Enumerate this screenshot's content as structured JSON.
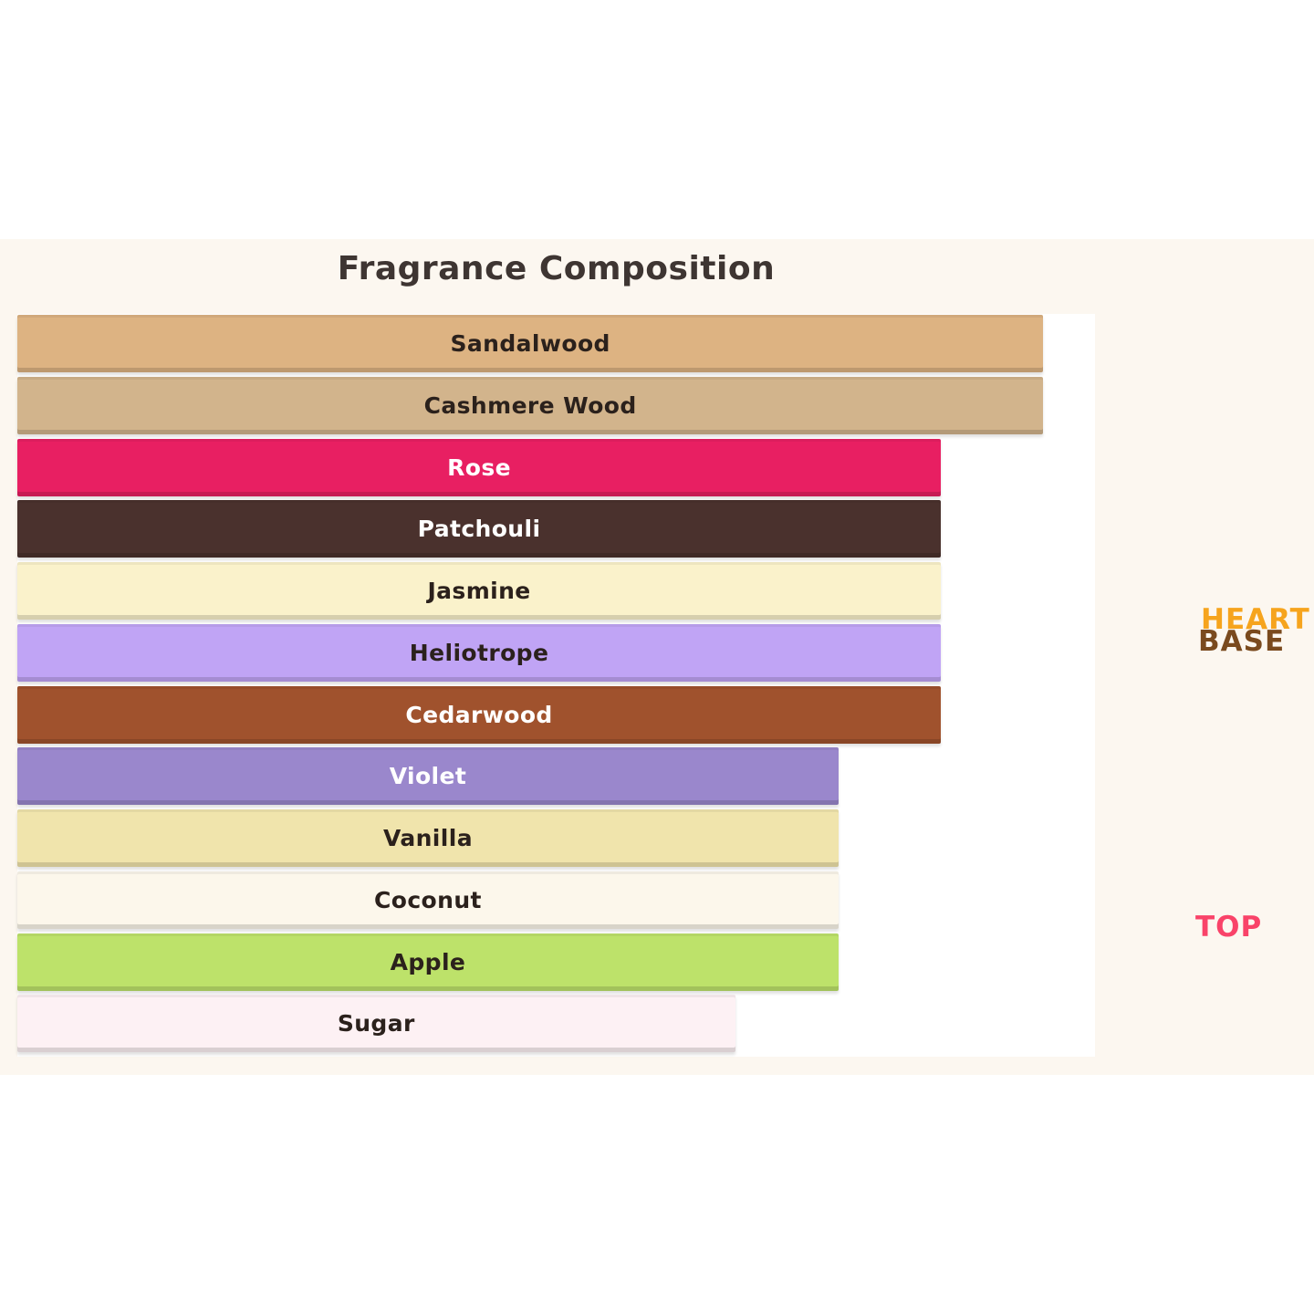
{
  "page": {
    "background": "#ffffff",
    "band_color": "#FCF7F0",
    "panel_color": "#ffffff"
  },
  "chart": {
    "title": "Fragrance Composition",
    "title_color": "#3E3532",
    "notes": [
      {
        "label": "Sandalwood",
        "color": "#DDB382",
        "text_color": "#2B211C",
        "width_pct": 95.2
      },
      {
        "label": "Cashmere Wood",
        "color": "#D2B48C",
        "text_color": "#2B211C",
        "width_pct": 95.2
      },
      {
        "label": "Rose",
        "color": "#E81F62",
        "text_color": "#FFFFFF",
        "width_pct": 85.7
      },
      {
        "label": "Patchouli",
        "color": "#4A312D",
        "text_color": "#FFFFFF",
        "width_pct": 85.7
      },
      {
        "label": "Jasmine",
        "color": "#FAF2CB",
        "text_color": "#2B211C",
        "width_pct": 85.7
      },
      {
        "label": "Heliotrope",
        "color": "#C0A4F5",
        "text_color": "#2B211C",
        "width_pct": 85.7
      },
      {
        "label": "Cedarwood",
        "color": "#A0522D",
        "text_color": "#FFFFFF",
        "width_pct": 85.7
      },
      {
        "label": "Violet",
        "color": "#9A87CC",
        "text_color": "#FFFFFF",
        "width_pct": 76.2
      },
      {
        "label": "Vanilla",
        "color": "#F0E4AC",
        "text_color": "#2B211C",
        "width_pct": 76.2
      },
      {
        "label": "Coconut",
        "color": "#FCF7EB",
        "text_color": "#2B211C",
        "width_pct": 76.2
      },
      {
        "label": "Apple",
        "color": "#BDE26A",
        "text_color": "#2B211C",
        "width_pct": 76.2
      },
      {
        "label": "Sugar",
        "color": "#FDF1F4",
        "text_color": "#2B211C",
        "width_pct": 66.6
      }
    ],
    "side_labels": {
      "heart": {
        "text": "HEART",
        "color": "#F6A41D"
      },
      "base": {
        "text": "BASE",
        "color": "#7A4A1E"
      },
      "top": {
        "text": "TOP",
        "color": "#F94369"
      }
    }
  },
  "chart_data": {
    "type": "bar",
    "orientation": "horizontal",
    "title": "Fragrance Composition",
    "categories": [
      "Sandalwood",
      "Cashmere Wood",
      "Rose",
      "Patchouli",
      "Jasmine",
      "Heliotrope",
      "Cedarwood",
      "Violet",
      "Vanilla",
      "Coconut",
      "Apple",
      "Sugar"
    ],
    "values": [
      95,
      95,
      86,
      86,
      86,
      86,
      86,
      76,
      76,
      76,
      76,
      67
    ],
    "value_note": "relative bar length as percent of plot width; no numeric axis shown",
    "bar_colors": [
      "#DDB382",
      "#D2B48C",
      "#E81F62",
      "#4A312D",
      "#FAF2CB",
      "#C0A4F5",
      "#A0522D",
      "#9A87CC",
      "#F0E4AC",
      "#FCF7EB",
      "#BDE26A",
      "#FDF1F4"
    ],
    "bar_labels": "category name centered inside each bar",
    "annotations": [
      {
        "text": "HEART",
        "color": "#F6A41D",
        "position": "right side, beside Jasmine/Heliotrope rows"
      },
      {
        "text": "BASE",
        "color": "#7A4A1E",
        "position": "right side, directly below HEART"
      },
      {
        "text": "TOP",
        "color": "#F94369",
        "position": "right side, beside Coconut/Apple rows"
      }
    ],
    "xlabel": "",
    "ylabel": "",
    "axes_hidden": true,
    "grid": false,
    "legend": "none"
  }
}
